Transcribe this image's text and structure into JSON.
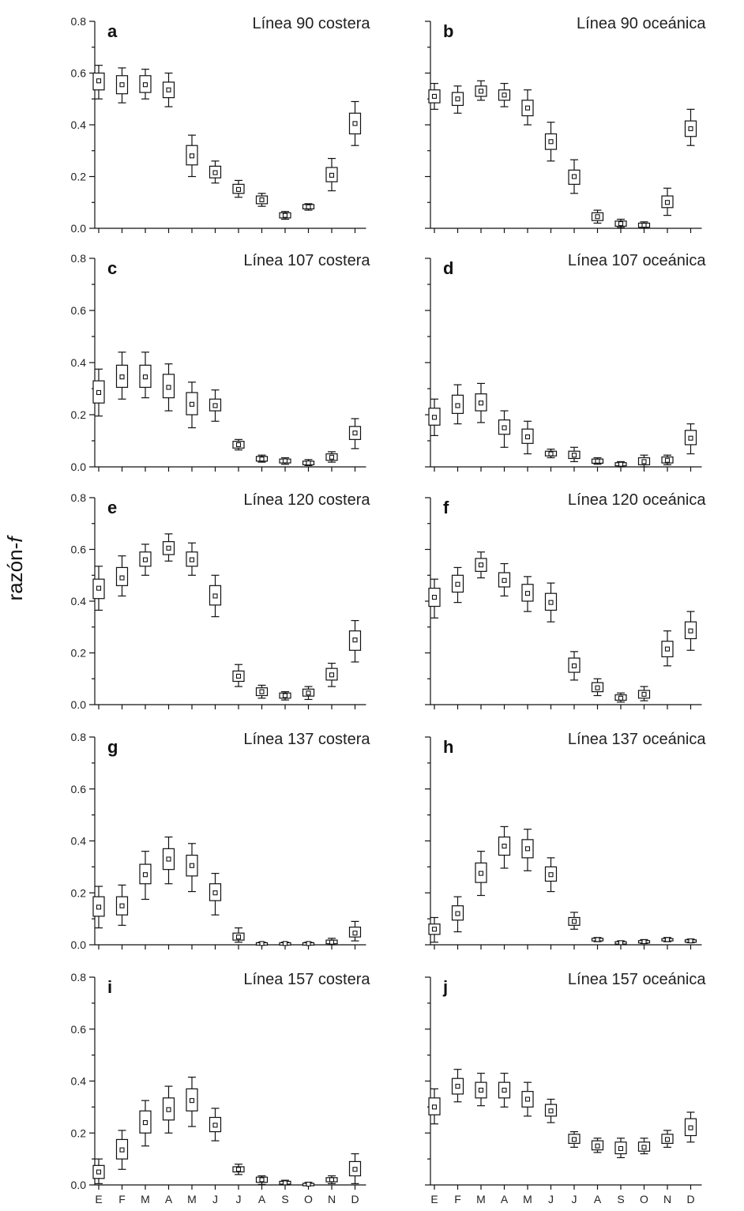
{
  "figure": {
    "ylabel": "razón-f",
    "ylabel_main": "razón-",
    "ylabel_italic": "f"
  },
  "chart_data": [
    {
      "type": "boxplot",
      "letter": "a",
      "title": "Línea 90 costera",
      "categories": [
        "E",
        "F",
        "M",
        "A",
        "M",
        "J",
        "J",
        "A",
        "S",
        "O",
        "N",
        "D"
      ],
      "ylim": [
        0,
        0.8
      ],
      "yticks": [
        "0.0",
        "0.2",
        "0.4",
        "0.6",
        "0.8"
      ],
      "show_ytick_labels": true,
      "show_xtick_labels": false,
      "median": [
        0.57,
        0.555,
        0.555,
        0.535,
        0.28,
        0.215,
        0.15,
        0.11,
        0.05,
        0.083,
        0.205,
        0.405
      ],
      "box_low": [
        0.535,
        0.52,
        0.525,
        0.505,
        0.245,
        0.195,
        0.135,
        0.095,
        0.04,
        0.075,
        0.18,
        0.365
      ],
      "box_high": [
        0.6,
        0.59,
        0.59,
        0.565,
        0.32,
        0.24,
        0.17,
        0.125,
        0.06,
        0.092,
        0.235,
        0.445
      ],
      "whisker_low": [
        0.5,
        0.485,
        0.5,
        0.47,
        0.2,
        0.175,
        0.12,
        0.085,
        0.035,
        0.07,
        0.145,
        0.32
      ],
      "whisker_high": [
        0.63,
        0.62,
        0.615,
        0.6,
        0.36,
        0.26,
        0.185,
        0.135,
        0.065,
        0.095,
        0.27,
        0.49
      ]
    },
    {
      "type": "boxplot",
      "letter": "b",
      "title": "Línea 90 oceánica",
      "categories": [
        "E",
        "F",
        "M",
        "A",
        "M",
        "J",
        "J",
        "A",
        "S",
        "O",
        "N",
        "D"
      ],
      "ylim": [
        0,
        0.8
      ],
      "yticks": [
        "0.0",
        "0.2",
        "0.4",
        "0.6",
        "0.8"
      ],
      "show_ytick_labels": false,
      "show_xtick_labels": false,
      "median": [
        0.51,
        0.5,
        0.53,
        0.515,
        0.465,
        0.335,
        0.2,
        0.045,
        0.018,
        0.012,
        0.1,
        0.385
      ],
      "box_low": [
        0.485,
        0.475,
        0.51,
        0.495,
        0.435,
        0.305,
        0.17,
        0.03,
        0.008,
        0.004,
        0.08,
        0.355
      ],
      "box_high": [
        0.535,
        0.525,
        0.55,
        0.535,
        0.495,
        0.365,
        0.225,
        0.06,
        0.028,
        0.02,
        0.125,
        0.415
      ],
      "whisker_low": [
        0.46,
        0.445,
        0.495,
        0.47,
        0.4,
        0.26,
        0.135,
        0.02,
        0.003,
        0.0,
        0.05,
        0.32
      ],
      "whisker_high": [
        0.56,
        0.55,
        0.57,
        0.56,
        0.535,
        0.41,
        0.265,
        0.07,
        0.035,
        0.025,
        0.155,
        0.46
      ]
    },
    {
      "type": "boxplot",
      "letter": "c",
      "title": "Línea 107 costera",
      "categories": [
        "E",
        "F",
        "M",
        "A",
        "M",
        "J",
        "J",
        "A",
        "S",
        "O",
        "N",
        "D"
      ],
      "ylim": [
        0,
        0.8
      ],
      "yticks": [
        "0.0",
        "0.2",
        "0.4",
        "0.6",
        "0.8"
      ],
      "show_ytick_labels": true,
      "show_xtick_labels": false,
      "median": [
        0.285,
        0.345,
        0.345,
        0.305,
        0.24,
        0.235,
        0.085,
        0.03,
        0.023,
        0.015,
        0.037,
        0.13
      ],
      "box_low": [
        0.245,
        0.305,
        0.305,
        0.265,
        0.2,
        0.215,
        0.072,
        0.022,
        0.015,
        0.008,
        0.025,
        0.105
      ],
      "box_high": [
        0.33,
        0.39,
        0.39,
        0.355,
        0.285,
        0.26,
        0.098,
        0.04,
        0.03,
        0.022,
        0.05,
        0.155
      ],
      "whisker_low": [
        0.195,
        0.26,
        0.265,
        0.215,
        0.15,
        0.175,
        0.065,
        0.018,
        0.01,
        0.005,
        0.018,
        0.07
      ],
      "whisker_high": [
        0.375,
        0.44,
        0.44,
        0.395,
        0.325,
        0.295,
        0.105,
        0.045,
        0.035,
        0.028,
        0.058,
        0.185
      ]
    },
    {
      "type": "boxplot",
      "letter": "d",
      "title": "Línea 107 oceánica",
      "categories": [
        "E",
        "F",
        "M",
        "A",
        "M",
        "J",
        "J",
        "A",
        "S",
        "O",
        "N",
        "D"
      ],
      "ylim": [
        0,
        0.8
      ],
      "yticks": [
        "0.0",
        "0.2",
        "0.4",
        "0.6",
        "0.8"
      ],
      "show_ytick_labels": false,
      "show_xtick_labels": false,
      "median": [
        0.19,
        0.235,
        0.245,
        0.15,
        0.115,
        0.05,
        0.045,
        0.022,
        0.01,
        0.02,
        0.025,
        0.11
      ],
      "box_low": [
        0.16,
        0.205,
        0.215,
        0.125,
        0.09,
        0.042,
        0.032,
        0.014,
        0.004,
        0.008,
        0.015,
        0.085
      ],
      "box_high": [
        0.225,
        0.275,
        0.28,
        0.18,
        0.145,
        0.06,
        0.06,
        0.03,
        0.016,
        0.035,
        0.038,
        0.14
      ],
      "whisker_low": [
        0.12,
        0.165,
        0.17,
        0.075,
        0.05,
        0.035,
        0.02,
        0.01,
        0.0,
        0.0,
        0.008,
        0.05
      ],
      "whisker_high": [
        0.26,
        0.315,
        0.32,
        0.215,
        0.175,
        0.068,
        0.075,
        0.035,
        0.02,
        0.045,
        0.045,
        0.165
      ]
    },
    {
      "type": "boxplot",
      "letter": "e",
      "title": "Línea 120 costera",
      "categories": [
        "E",
        "F",
        "M",
        "A",
        "M",
        "J",
        "J",
        "A",
        "S",
        "O",
        "N",
        "D"
      ],
      "ylim": [
        0,
        0.8
      ],
      "yticks": [
        "0.0",
        "0.2",
        "0.4",
        "0.6",
        "0.8"
      ],
      "show_ytick_labels": true,
      "show_xtick_labels": false,
      "median": [
        0.45,
        0.49,
        0.56,
        0.605,
        0.56,
        0.42,
        0.11,
        0.05,
        0.035,
        0.045,
        0.115,
        0.25
      ],
      "box_low": [
        0.41,
        0.46,
        0.535,
        0.58,
        0.535,
        0.385,
        0.09,
        0.035,
        0.025,
        0.033,
        0.095,
        0.21
      ],
      "box_high": [
        0.485,
        0.53,
        0.59,
        0.63,
        0.59,
        0.46,
        0.13,
        0.065,
        0.045,
        0.06,
        0.14,
        0.285
      ],
      "whisker_low": [
        0.365,
        0.42,
        0.5,
        0.555,
        0.5,
        0.34,
        0.07,
        0.025,
        0.018,
        0.02,
        0.07,
        0.165
      ],
      "whisker_high": [
        0.535,
        0.575,
        0.62,
        0.66,
        0.625,
        0.5,
        0.155,
        0.075,
        0.05,
        0.07,
        0.16,
        0.325
      ]
    },
    {
      "type": "boxplot",
      "letter": "f",
      "title": "Línea 120 oceánica",
      "categories": [
        "E",
        "F",
        "M",
        "A",
        "M",
        "J",
        "J",
        "A",
        "S",
        "O",
        "N",
        "D"
      ],
      "ylim": [
        0,
        0.8
      ],
      "yticks": [
        "0.0",
        "0.2",
        "0.4",
        "0.6",
        "0.8"
      ],
      "show_ytick_labels": false,
      "show_xtick_labels": false,
      "median": [
        0.415,
        0.465,
        0.54,
        0.48,
        0.43,
        0.395,
        0.15,
        0.065,
        0.025,
        0.04,
        0.215,
        0.285
      ],
      "box_low": [
        0.38,
        0.435,
        0.515,
        0.455,
        0.4,
        0.365,
        0.125,
        0.05,
        0.017,
        0.025,
        0.185,
        0.255
      ],
      "box_high": [
        0.45,
        0.5,
        0.565,
        0.51,
        0.465,
        0.43,
        0.18,
        0.085,
        0.038,
        0.055,
        0.245,
        0.32
      ],
      "whisker_low": [
        0.335,
        0.395,
        0.49,
        0.42,
        0.36,
        0.32,
        0.095,
        0.035,
        0.01,
        0.015,
        0.15,
        0.21
      ],
      "whisker_high": [
        0.485,
        0.53,
        0.59,
        0.545,
        0.495,
        0.47,
        0.205,
        0.1,
        0.045,
        0.07,
        0.285,
        0.36
      ]
    },
    {
      "type": "boxplot",
      "letter": "g",
      "title": "Línea 137 costera",
      "categories": [
        "E",
        "F",
        "M",
        "A",
        "M",
        "J",
        "J",
        "A",
        "S",
        "O",
        "N",
        "D"
      ],
      "ylim": [
        0,
        0.8
      ],
      "yticks": [
        "0.0",
        "0.2",
        "0.4",
        "0.6",
        "0.8"
      ],
      "show_ytick_labels": true,
      "show_xtick_labels": false,
      "median": [
        0.145,
        0.15,
        0.27,
        0.33,
        0.305,
        0.2,
        0.03,
        0.005,
        0.005,
        0.005,
        0.01,
        0.045
      ],
      "box_low": [
        0.11,
        0.115,
        0.235,
        0.29,
        0.265,
        0.17,
        0.018,
        0.002,
        0.002,
        0.002,
        0.004,
        0.03
      ],
      "box_high": [
        0.185,
        0.185,
        0.31,
        0.37,
        0.345,
        0.235,
        0.045,
        0.008,
        0.008,
        0.008,
        0.018,
        0.068
      ],
      "whisker_low": [
        0.065,
        0.075,
        0.175,
        0.235,
        0.205,
        0.115,
        0.01,
        0.0,
        0.0,
        0.0,
        0.0,
        0.015
      ],
      "whisker_high": [
        0.225,
        0.23,
        0.36,
        0.415,
        0.39,
        0.275,
        0.065,
        0.01,
        0.01,
        0.01,
        0.025,
        0.09
      ]
    },
    {
      "type": "boxplot",
      "letter": "h",
      "title": "Línea 137 oceánica",
      "categories": [
        "E",
        "F",
        "M",
        "A",
        "M",
        "J",
        "J",
        "A",
        "S",
        "O",
        "N",
        "D"
      ],
      "ylim": [
        0,
        0.8
      ],
      "yticks": [
        "0.0",
        "0.2",
        "0.4",
        "0.6",
        "0.8"
      ],
      "show_ytick_labels": false,
      "show_xtick_labels": false,
      "median": [
        0.06,
        0.12,
        0.275,
        0.38,
        0.37,
        0.27,
        0.09,
        0.02,
        0.008,
        0.012,
        0.02,
        0.015
      ],
      "box_low": [
        0.04,
        0.095,
        0.24,
        0.345,
        0.335,
        0.245,
        0.075,
        0.015,
        0.004,
        0.008,
        0.016,
        0.011
      ],
      "box_high": [
        0.08,
        0.15,
        0.315,
        0.415,
        0.405,
        0.3,
        0.105,
        0.025,
        0.012,
        0.016,
        0.024,
        0.019
      ],
      "whisker_low": [
        0.01,
        0.05,
        0.19,
        0.295,
        0.285,
        0.205,
        0.06,
        0.012,
        0.002,
        0.005,
        0.012,
        0.008
      ],
      "whisker_high": [
        0.105,
        0.185,
        0.36,
        0.455,
        0.445,
        0.335,
        0.125,
        0.028,
        0.015,
        0.02,
        0.028,
        0.022
      ]
    },
    {
      "type": "boxplot",
      "letter": "i",
      "title": "Línea 157 costera",
      "categories": [
        "E",
        "F",
        "M",
        "A",
        "M",
        "J",
        "J",
        "A",
        "S",
        "O",
        "N",
        "D"
      ],
      "ylim": [
        0,
        0.8
      ],
      "yticks": [
        "0.0",
        "0.2",
        "0.4",
        "0.6",
        "0.8"
      ],
      "show_ytick_labels": true,
      "show_xtick_labels": true,
      "median": [
        0.05,
        0.135,
        0.24,
        0.29,
        0.325,
        0.23,
        0.06,
        0.02,
        0.008,
        0.003,
        0.02,
        0.06
      ],
      "box_low": [
        0.025,
        0.1,
        0.2,
        0.25,
        0.285,
        0.205,
        0.05,
        0.01,
        0.003,
        0.0,
        0.012,
        0.035
      ],
      "box_high": [
        0.075,
        0.175,
        0.285,
        0.335,
        0.37,
        0.26,
        0.07,
        0.03,
        0.014,
        0.006,
        0.028,
        0.09
      ],
      "whisker_low": [
        0.005,
        0.06,
        0.15,
        0.2,
        0.225,
        0.17,
        0.04,
        0.002,
        0.0,
        0.0,
        0.005,
        0.005
      ],
      "whisker_high": [
        0.1,
        0.21,
        0.325,
        0.38,
        0.415,
        0.295,
        0.08,
        0.035,
        0.018,
        0.01,
        0.035,
        0.12
      ]
    },
    {
      "type": "boxplot",
      "letter": "j",
      "title": "Línea 157 oceánica",
      "categories": [
        "E",
        "F",
        "M",
        "A",
        "M",
        "J",
        "J",
        "A",
        "S",
        "O",
        "N",
        "D"
      ],
      "ylim": [
        0,
        0.8
      ],
      "yticks": [
        "0.0",
        "0.2",
        "0.4",
        "0.6",
        "0.8"
      ],
      "show_ytick_labels": false,
      "show_xtick_labels": true,
      "median": [
        0.3,
        0.38,
        0.365,
        0.365,
        0.33,
        0.285,
        0.175,
        0.15,
        0.14,
        0.145,
        0.175,
        0.22
      ],
      "box_low": [
        0.27,
        0.35,
        0.335,
        0.335,
        0.3,
        0.265,
        0.16,
        0.135,
        0.12,
        0.13,
        0.16,
        0.19
      ],
      "box_high": [
        0.335,
        0.41,
        0.395,
        0.395,
        0.36,
        0.31,
        0.195,
        0.17,
        0.165,
        0.165,
        0.195,
        0.255
      ],
      "whisker_low": [
        0.235,
        0.32,
        0.305,
        0.3,
        0.265,
        0.24,
        0.145,
        0.125,
        0.105,
        0.12,
        0.145,
        0.165
      ],
      "whisker_high": [
        0.37,
        0.445,
        0.43,
        0.43,
        0.395,
        0.33,
        0.205,
        0.18,
        0.18,
        0.18,
        0.21,
        0.28
      ]
    }
  ]
}
